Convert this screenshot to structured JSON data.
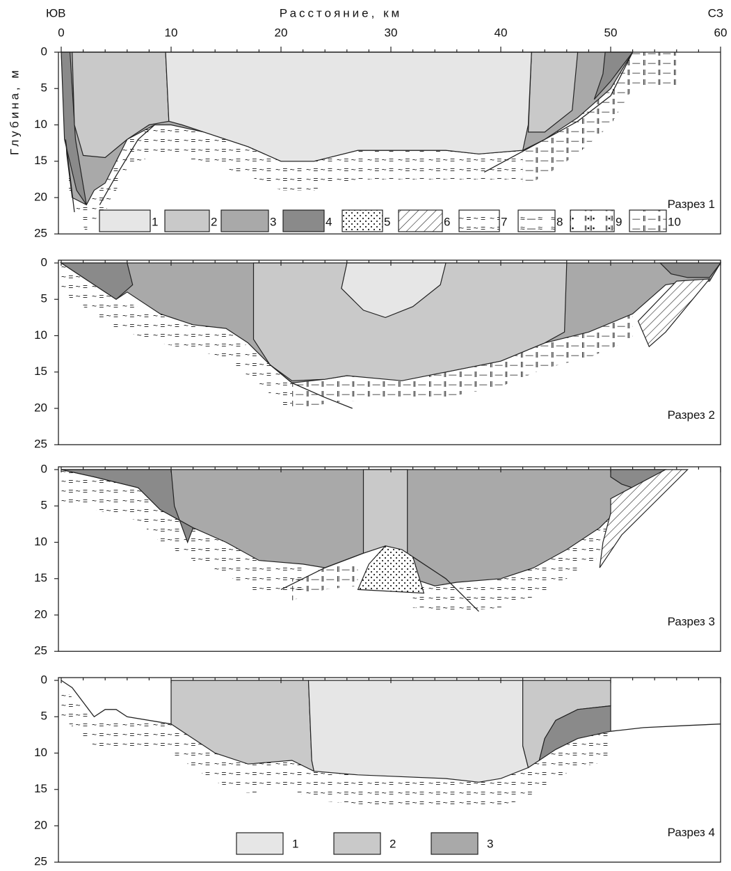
{
  "header": {
    "left": "ЮВ",
    "title": "Расстояние, км",
    "right": "СЗ",
    "y_label": "Глубина, м"
  },
  "x_ticks": [
    "0",
    "10",
    "20",
    "30",
    "40",
    "50",
    "60"
  ],
  "y_ticks": [
    "0",
    "5",
    "10",
    "15",
    "20",
    "25"
  ],
  "panels": [
    {
      "title": "Разрез 1"
    },
    {
      "title": "Разрез 2"
    },
    {
      "title": "Разрез 3"
    },
    {
      "title": "Разрез 4"
    }
  ],
  "legend_1": [
    "1",
    "2",
    "3",
    "4",
    "5",
    "6",
    "7",
    "8",
    "9",
    "10"
  ],
  "legend_4": [
    "1",
    "2",
    "3"
  ]
}
